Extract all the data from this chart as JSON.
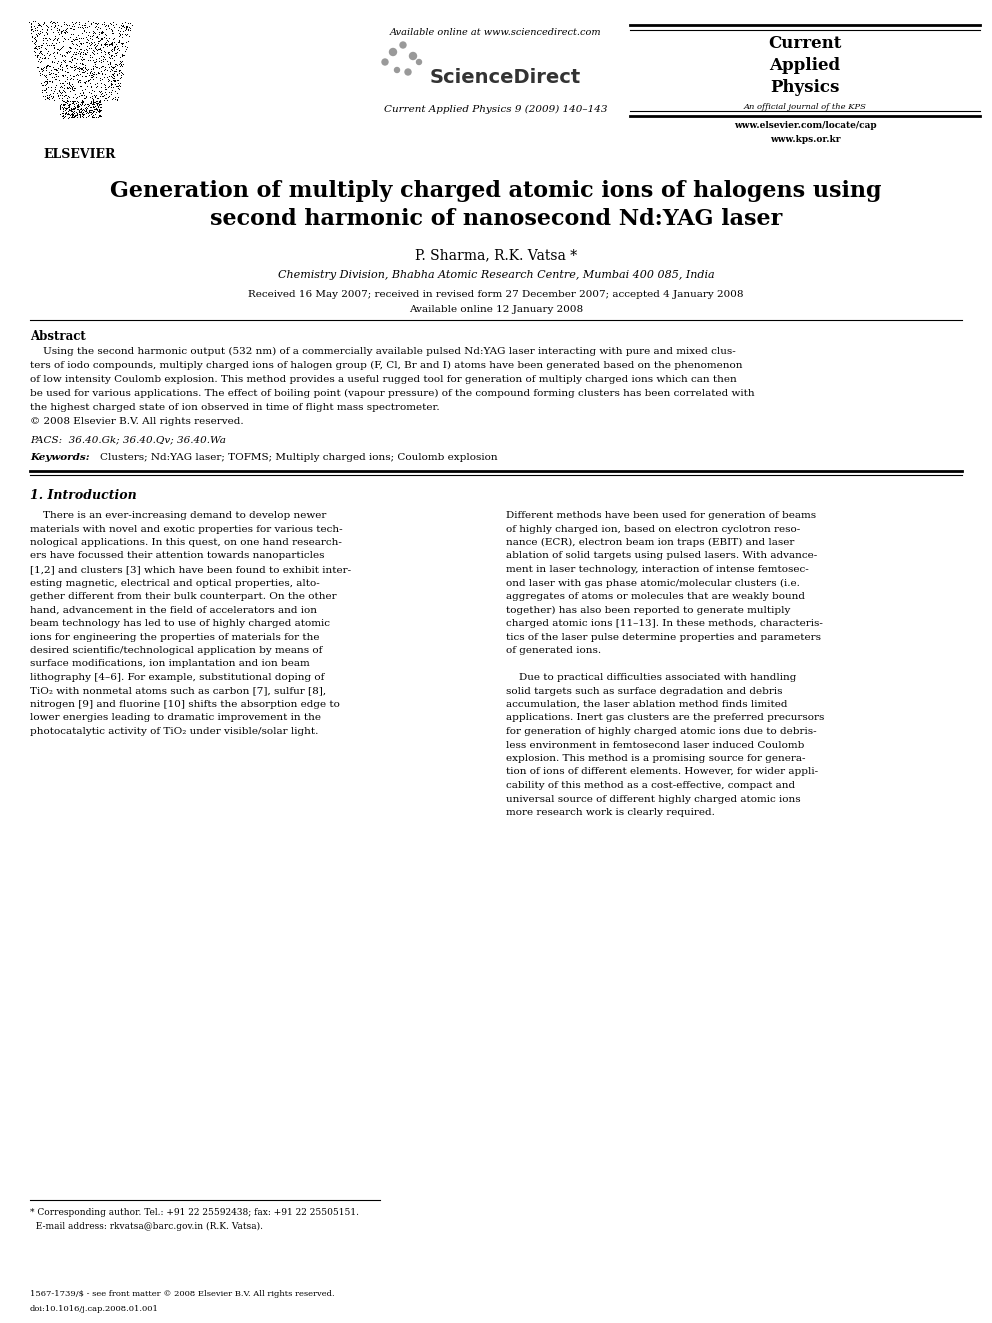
{
  "bg_color": "#ffffff",
  "page_width": 9.92,
  "page_height": 13.23,
  "header": {
    "available_online": "Available online at www.sciencedirect.com",
    "sciencedirect": "ScienceDirect",
    "journal_info": "Current Applied Physics 9 (2009) 140–143",
    "cap_title_line1": "Current",
    "cap_title_line2": "Applied",
    "cap_title_line3": "Physics",
    "cap_subtitle": "An official journal of the KPS",
    "cap_url1": "www.elsevier.com/locate/cap",
    "cap_url2": "www.kps.or.kr",
    "elsevier": "ELSEVIER"
  },
  "paper_title_line1": "Generation of multiply charged atomic ions of halogens using",
  "paper_title_line2": "second harmonic of nanosecond Nd:YAG laser",
  "authors": "P. Sharma, R.K. Vatsa *",
  "affiliation": "Chemistry Division, Bhabha Atomic Research Centre, Mumbai 400 085, India",
  "received": "Received 16 May 2007; received in revised form 27 December 2007; accepted 4 January 2008",
  "available_online_paper": "Available online 12 January 2008",
  "abstract_heading": "Abstract",
  "pacs": "PACS:  36.40.Gk; 36.40.Qv; 36.40.Wa",
  "keywords_label": "Keywords:",
  "keywords_text": "Clusters; Nd:YAG laser; TOFMS; Multiply charged ions; Coulomb explosion",
  "section1_heading": "1. Introduction",
  "footnote_line1": "* Corresponding author. Tel.: +91 22 25592438; fax: +91 22 25505151.",
  "footnote_line2": "  E-mail address: rkvatsa@barc.gov.in (R.K. Vatsa).",
  "footer_line1": "1567-1739/$ - see front matter © 2008 Elsevier B.V. All rights reserved.",
  "footer_line2": "doi:10.1016/j.cap.2008.01.001"
}
